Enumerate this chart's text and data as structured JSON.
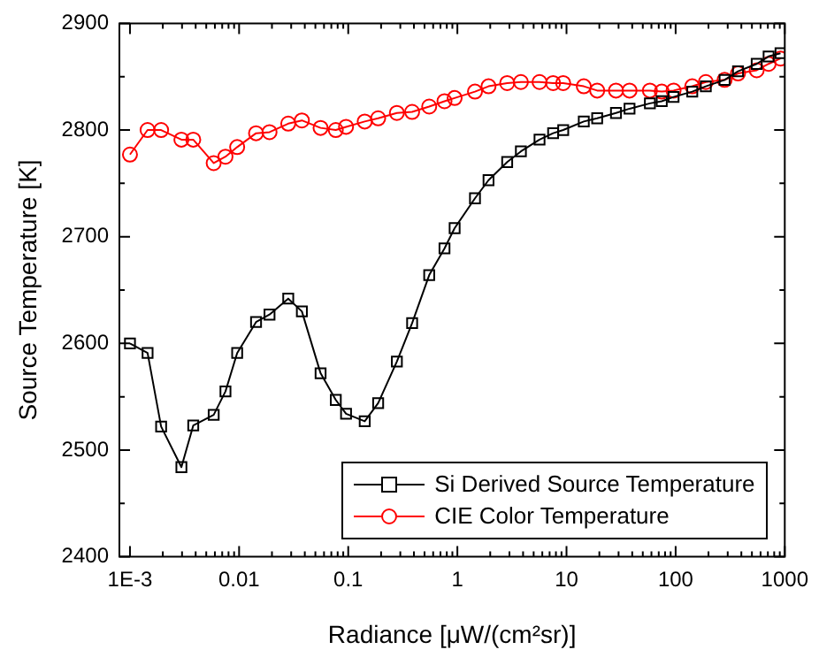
{
  "chart_data": {
    "type": "line",
    "xlabel": "Radiance [μW/(cm²sr)]",
    "ylabel": "Source Temperature [K]",
    "x": [
      0.001,
      0.00145,
      0.00193,
      0.00296,
      0.0038,
      0.00585,
      0.0075,
      0.0096,
      0.0143,
      0.019,
      0.0282,
      0.0376,
      0.0558,
      0.0769,
      0.0955,
      0.1416,
      0.188,
      0.279,
      0.385,
      0.552,
      0.762,
      0.944,
      1.45,
      1.93,
      2.86,
      3.82,
      5.66,
      7.54,
      9.33,
      14.4,
      19.1,
      28.4,
      37.8,
      58.1,
      74.6,
      95.7,
      142,
      189,
      281,
      373,
      553,
      711,
      914
    ],
    "series": [
      {
        "name": "Si Derived Source Temperature",
        "color": "#000000",
        "marker": "square",
        "values": [
          2600,
          2591,
          2522,
          2484,
          2523,
          2533,
          2555,
          2591,
          2620,
          2627,
          2642,
          2630,
          2572,
          2547,
          2534,
          2527,
          2544,
          2583,
          2619,
          2664,
          2689,
          2708,
          2736,
          2753,
          2770,
          2780,
          2791,
          2797,
          2800,
          2808,
          2811,
          2816,
          2820,
          2825,
          2827,
          2831,
          2836,
          2841,
          2847,
          2855,
          2862,
          2869,
          2872
        ]
      },
      {
        "name": "CIE Color Temperature",
        "color": "#ff0000",
        "marker": "circle",
        "values": [
          2777,
          2800,
          2800,
          2791,
          2791,
          2769,
          2775,
          2784,
          2797,
          2798,
          2806,
          2809,
          2802,
          2800,
          2803,
          2808,
          2811,
          2816,
          2817,
          2822,
          2827,
          2830,
          2836,
          2841,
          2844,
          2845,
          2845,
          2844,
          2844,
          2841,
          2837,
          2837,
          2837,
          2837,
          2836,
          2837,
          2841,
          2845,
          2847,
          2853,
          2856,
          2862,
          2867
        ]
      }
    ],
    "log": "x",
    "xlim": [
      0.0008,
      1000
    ],
    "xticks": [
      {
        "value": 0.001,
        "label": "1E-3"
      },
      {
        "value": 0.002,
        "label": null
      },
      {
        "value": 0.003,
        "label": null
      },
      {
        "value": 0.004,
        "label": null
      },
      {
        "value": 0.005,
        "label": null
      },
      {
        "value": 0.006,
        "label": null
      },
      {
        "value": 0.007,
        "label": null
      },
      {
        "value": 0.008,
        "label": null
      },
      {
        "value": 0.009,
        "label": null
      },
      0.01,
      {
        "value": 0.02,
        "label": null
      },
      {
        "value": 0.03,
        "label": null
      },
      {
        "value": 0.04,
        "label": null
      },
      {
        "value": 0.05,
        "label": null
      },
      {
        "value": 0.06,
        "label": null
      },
      {
        "value": 0.07,
        "label": null
      },
      {
        "value": 0.08,
        "label": null
      },
      {
        "value": 0.09,
        "label": null
      },
      0.1,
      {
        "value": 0.2,
        "label": null
      },
      {
        "value": 0.3,
        "label": null
      },
      {
        "value": 0.4,
        "label": null
      },
      {
        "value": 0.5,
        "label": null
      },
      {
        "value": 0.6,
        "label": null
      },
      {
        "value": 0.7,
        "label": null
      },
      {
        "value": 0.8,
        "label": null
      },
      {
        "value": 0.9,
        "label": null
      },
      1,
      {
        "value": 2,
        "label": null
      },
      {
        "value": 3,
        "label": null
      },
      {
        "value": 4,
        "label": null
      },
      {
        "value": 5,
        "label": null
      },
      {
        "value": 6,
        "label": null
      },
      {
        "value": 7,
        "label": null
      },
      {
        "value": 8,
        "label": null
      },
      {
        "value": 9,
        "label": null
      },
      10,
      {
        "value": 20,
        "label": null
      },
      {
        "value": 30,
        "label": null
      },
      {
        "value": 40,
        "label": null
      },
      {
        "value": 50,
        "label": null
      },
      {
        "value": 60,
        "label": null
      },
      {
        "value": 70,
        "label": null
      },
      {
        "value": 80,
        "label": null
      },
      {
        "value": 90,
        "label": null
      },
      100,
      {
        "value": 200,
        "label": null
      },
      {
        "value": 300,
        "label": null
      },
      {
        "value": 400,
        "label": null
      },
      {
        "value": 500,
        "label": null
      },
      {
        "value": 600,
        "label": null
      },
      {
        "value": 700,
        "label": null
      },
      {
        "value": 800,
        "label": null
      },
      {
        "value": 900,
        "label": null
      },
      1000
    ],
    "ylim": [
      2400,
      2900
    ],
    "yticks": [
      2400,
      {
        "value": 2450,
        "label": null
      },
      2500,
      {
        "value": 2550,
        "label": null
      },
      2600,
      {
        "value": 2650,
        "label": null
      },
      2700,
      {
        "value": 2750,
        "label": null
      },
      2800,
      {
        "value": 2850,
        "label": null
      },
      2900
    ],
    "grid": false,
    "legend": "bottom right",
    "line_style": "solid"
  }
}
